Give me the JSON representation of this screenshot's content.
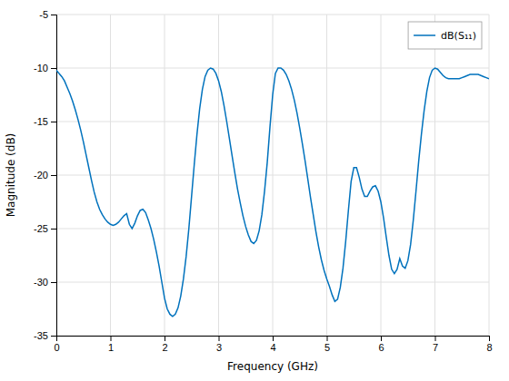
{
  "chart_data": {
    "type": "line",
    "xlabel": "Frequency (GHz)",
    "ylabel": "Magnitude (dB)",
    "x": [
      0.0,
      0.05,
      0.1,
      0.15,
      0.2,
      0.25,
      0.3,
      0.35,
      0.4,
      0.45,
      0.5,
      0.55,
      0.6,
      0.65,
      0.7,
      0.75,
      0.8,
      0.85,
      0.9,
      0.95,
      1.0,
      1.05,
      1.1,
      1.15,
      1.2,
      1.25,
      1.3,
      1.35,
      1.4,
      1.45,
      1.5,
      1.55,
      1.6,
      1.65,
      1.7,
      1.75,
      1.8,
      1.85,
      1.9,
      1.95,
      2.0,
      2.05,
      2.1,
      2.15,
      2.2,
      2.25,
      2.3,
      2.35,
      2.4,
      2.45,
      2.5,
      2.55,
      2.6,
      2.65,
      2.7,
      2.75,
      2.8,
      2.85,
      2.9,
      2.95,
      3.0,
      3.05,
      3.1,
      3.15,
      3.2,
      3.25,
      3.3,
      3.35,
      3.4,
      3.45,
      3.5,
      3.55,
      3.6,
      3.65,
      3.7,
      3.75,
      3.8,
      3.85,
      3.9,
      3.95,
      4.0,
      4.05,
      4.1,
      4.15,
      4.2,
      4.25,
      4.3,
      4.35,
      4.4,
      4.45,
      4.5,
      4.55,
      4.6,
      4.65,
      4.7,
      4.75,
      4.8,
      4.85,
      4.9,
      4.95,
      5.0,
      5.05,
      5.1,
      5.15,
      5.2,
      5.25,
      5.3,
      5.35,
      5.4,
      5.45,
      5.5,
      5.55,
      5.6,
      5.65,
      5.7,
      5.75,
      5.8,
      5.85,
      5.9,
      5.95,
      6.0,
      6.05,
      6.1,
      6.15,
      6.2,
      6.25,
      6.3,
      6.35,
      6.4,
      6.45,
      6.5,
      6.55,
      6.6,
      6.65,
      6.7,
      6.75,
      6.8,
      6.85,
      6.9,
      6.95,
      7.0,
      7.05,
      7.1,
      7.15,
      7.2,
      7.25,
      7.3,
      7.35,
      7.4,
      7.45,
      7.5,
      7.55,
      7.6,
      7.65,
      7.7,
      7.75,
      7.8,
      7.85,
      7.9,
      7.95,
      8.0
    ],
    "series": [
      {
        "name": "dB(S₁₁)",
        "color": "#0072BD",
        "values": [
          -10.2,
          -10.5,
          -10.8,
          -11.2,
          -11.8,
          -12.4,
          -13.1,
          -13.9,
          -14.8,
          -15.8,
          -16.9,
          -18.1,
          -19.3,
          -20.5,
          -21.6,
          -22.5,
          -23.2,
          -23.7,
          -24.1,
          -24.4,
          -24.6,
          -24.7,
          -24.6,
          -24.4,
          -24.1,
          -23.8,
          -23.6,
          -24.6,
          -25.0,
          -24.5,
          -23.8,
          -23.3,
          -23.2,
          -23.5,
          -24.2,
          -25.0,
          -26.0,
          -27.2,
          -28.5,
          -30.0,
          -31.5,
          -32.5,
          -33.0,
          -33.2,
          -33.0,
          -32.4,
          -31.3,
          -29.7,
          -27.6,
          -25.0,
          -22.0,
          -19.0,
          -16.2,
          -13.8,
          -12.0,
          -10.8,
          -10.2,
          -10.0,
          -10.1,
          -10.5,
          -11.2,
          -12.2,
          -13.5,
          -15.0,
          -16.6,
          -18.2,
          -19.8,
          -21.3,
          -22.6,
          -23.8,
          -24.8,
          -25.6,
          -26.2,
          -26.4,
          -26.1,
          -25.2,
          -23.7,
          -21.5,
          -18.8,
          -15.5,
          -12.5,
          -10.5,
          -10.0,
          -10.0,
          -10.2,
          -10.6,
          -11.2,
          -12.0,
          -13.0,
          -14.2,
          -15.6,
          -17.1,
          -18.7,
          -20.4,
          -22.1,
          -23.7,
          -25.3,
          -26.7,
          -27.9,
          -28.9,
          -29.7,
          -30.4,
          -31.2,
          -31.8,
          -31.6,
          -30.5,
          -28.7,
          -26.2,
          -23.3,
          -20.6,
          -19.3,
          -19.3,
          -20.2,
          -21.3,
          -22.0,
          -22.0,
          -21.5,
          -21.1,
          -21.0,
          -21.5,
          -22.5,
          -24.0,
          -25.8,
          -27.5,
          -28.8,
          -29.2,
          -28.8,
          -27.8,
          -28.5,
          -28.7,
          -28.0,
          -26.5,
          -24.2,
          -21.5,
          -18.7,
          -16.2,
          -14.0,
          -12.2,
          -10.9,
          -10.2,
          -10.0,
          -10.1,
          -10.4,
          -10.7,
          -10.9,
          -11.0,
          -11.0,
          -11.0,
          -11.0,
          -11.0,
          -10.9,
          -10.8,
          -10.7,
          -10.6,
          -10.6,
          -10.6,
          -10.6,
          -10.7,
          -10.8,
          -10.9,
          -11.0
        ]
      }
    ],
    "xlim": [
      0,
      8
    ],
    "ylim": [
      -35,
      -5
    ],
    "xticks": [
      0,
      1,
      2,
      3,
      4,
      5,
      6,
      7,
      8
    ],
    "yticks": [
      -35,
      -30,
      -25,
      -20,
      -15,
      -10,
      -5
    ],
    "grid": true,
    "legend": "upper right"
  }
}
